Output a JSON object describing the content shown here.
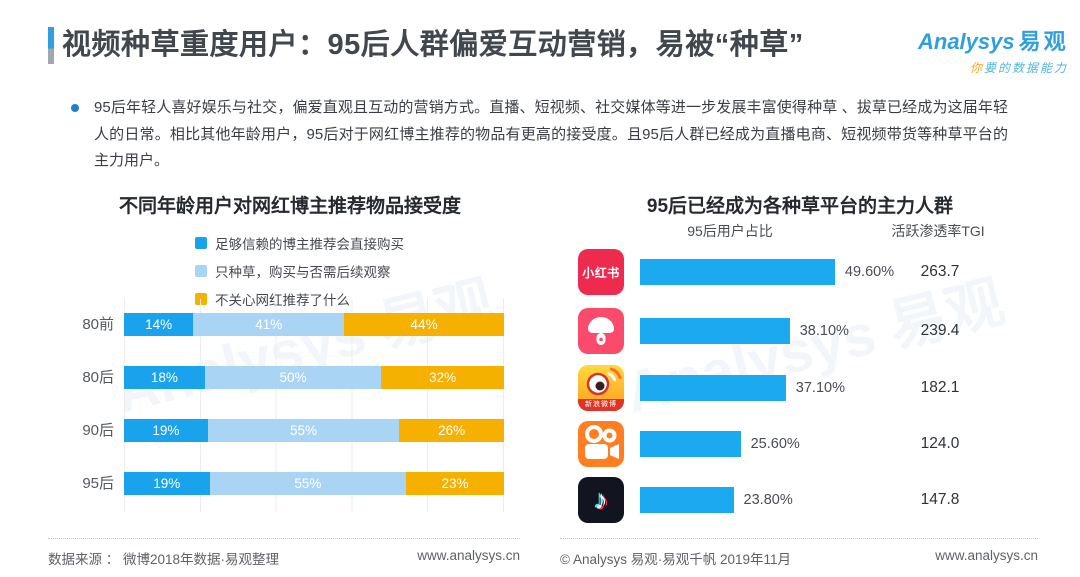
{
  "header": {
    "title": "视频种草重度用户：95后人群偏爱互动营销，易被“种草”",
    "accent_color": "#2E9FE0"
  },
  "logo": {
    "name": "Analysys",
    "name_cn": "易观",
    "tagline_accent": "你",
    "tagline_rest": "要的数据能力"
  },
  "intro": {
    "bullet_text": "95后年轻人喜好娱乐与社交，偏爱直观且互动的营销方式。直播、短视频、社交媒体等进一步发展丰富使得种草 、拔草已经成为这届年轻人的日常。相比其他年龄用户，95后对于网红博主推荐的物品有更高的接受度。且95后人群已经成为直播电商、短视频带货等种草平台的主力用户。"
  },
  "chart_data": [
    {
      "type": "bar",
      "orientation": "horizontal",
      "stacked": true,
      "title": "不同年龄用户对网红博主推荐物品接受度",
      "categories": [
        "80前",
        "80后",
        "90后",
        "95后"
      ],
      "series": [
        {
          "name": "足够信赖的博主推荐会直接购买",
          "color": "#18A3EC",
          "values": [
            14,
            18,
            19,
            19
          ]
        },
        {
          "name": "只种草，购买与否需后续观察",
          "color": "#A9D4F3",
          "values": [
            41,
            50,
            55,
            55
          ]
        },
        {
          "name": "不关心网红推荐了什么",
          "color": "#F5B000",
          "values": [
            44,
            32,
            26,
            23
          ]
        }
      ],
      "value_suffix": "%",
      "xlim": [
        0,
        100
      ],
      "grid": true,
      "legend_position": "top"
    },
    {
      "type": "bar",
      "orientation": "horizontal",
      "title": "95后已经成为各种草平台的主力人群",
      "columns": {
        "share": "95后用户占比",
        "tgi": "活跃渗透率TGI"
      },
      "bar_color": "#1BA9F0",
      "rows": [
        {
          "platform": "小红书",
          "icon": "xiaohongshu-icon",
          "icon_label": "小红书",
          "share_label": "49.60%",
          "share_value": 49.6,
          "tgi": "263.7"
        },
        {
          "platform": "蘑菇街",
          "icon": "mogujie-icon",
          "share_label": "38.10%",
          "share_value": 38.1,
          "tgi": "239.4"
        },
        {
          "platform": "新浪微博",
          "icon": "weibo-icon",
          "icon_label": "新浪微博",
          "share_label": "37.10%",
          "share_value": 37.1,
          "tgi": "182.1"
        },
        {
          "platform": "快手",
          "icon": "kuaishou-icon",
          "share_label": "25.60%",
          "share_value": 25.6,
          "tgi": "124.0"
        },
        {
          "platform": "抖音",
          "icon": "douyin-icon",
          "share_label": "23.80%",
          "share_value": 23.8,
          "tgi": "147.8"
        }
      ]
    }
  ],
  "watermark": {
    "text": "Analysys 易观"
  },
  "footer_left": {
    "source": "数据来源 ： 微博2018年数据·易观整理",
    "url": "www.analysys.cn"
  },
  "footer_right": {
    "copyright": "© Analysys 易观·易观千帆 2019年11月",
    "url": "www.analysys.cn"
  }
}
